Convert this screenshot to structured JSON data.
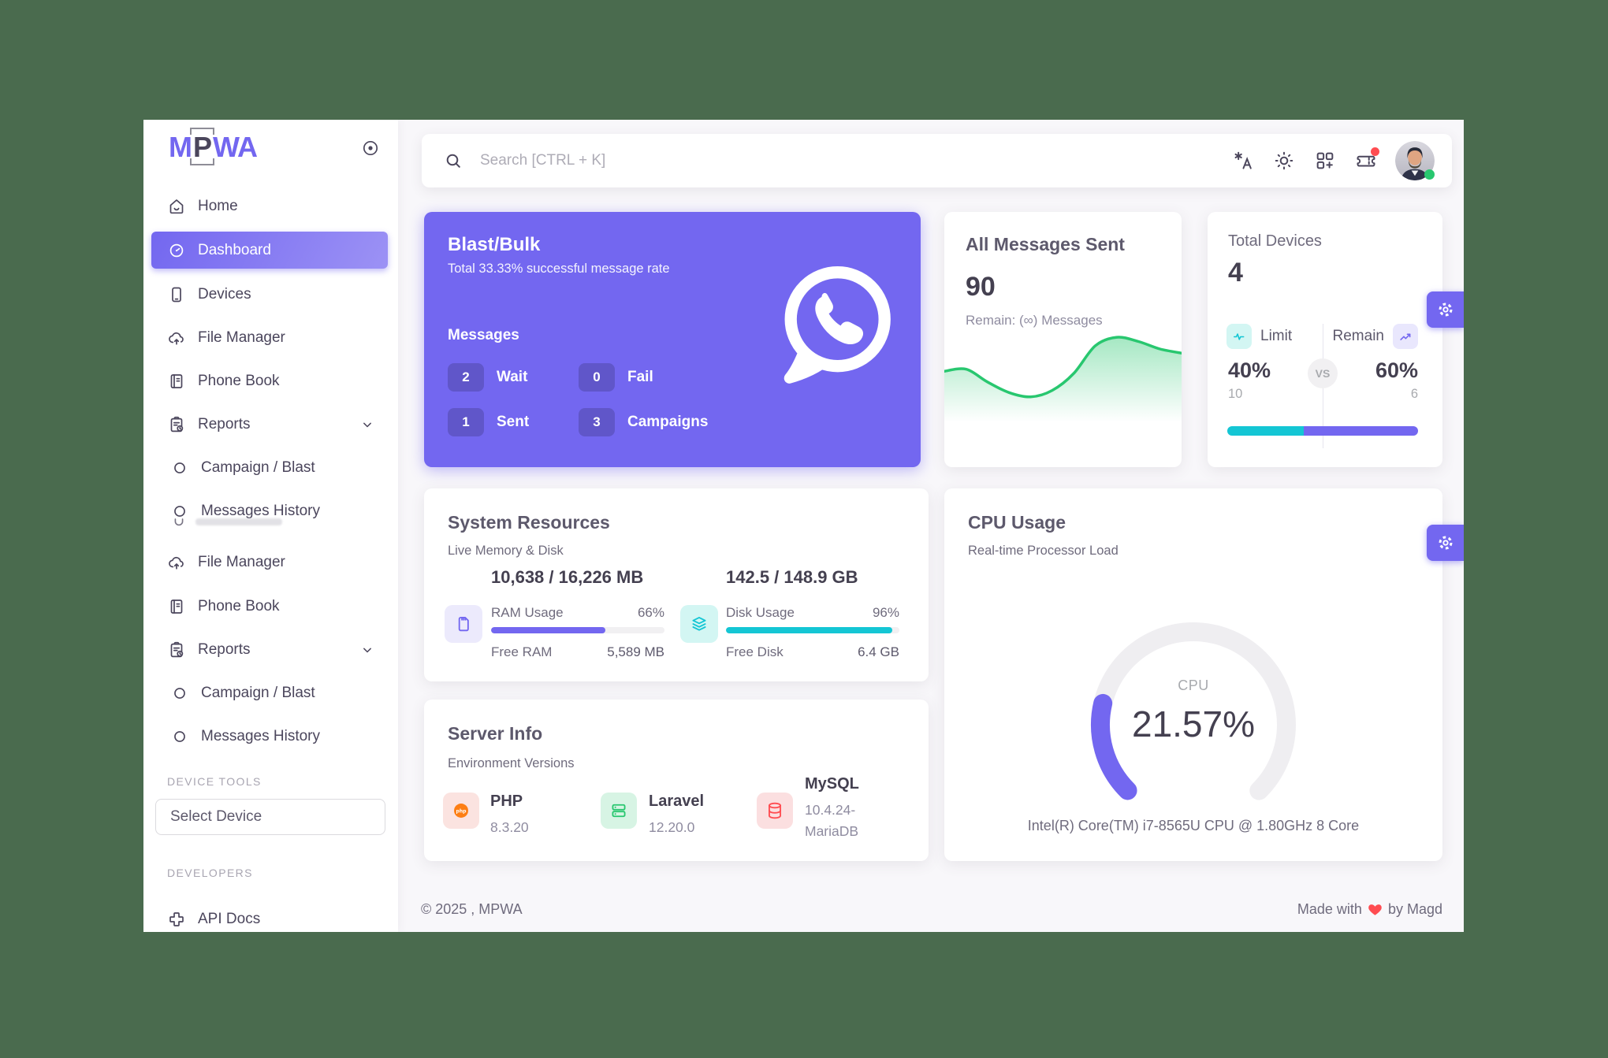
{
  "brand": {
    "logo_m": "M",
    "logo_p": "P",
    "logo_wa": "WA"
  },
  "colors": {
    "primary": "#7367f0",
    "success": "#28c76f",
    "info": "#14c6d4",
    "danger": "#ff4c51",
    "warning": "#fd7e14",
    "page_background": "#4a6b4e"
  },
  "sidebar": {
    "items": [
      {
        "label": "Home",
        "icon": "home-icon"
      },
      {
        "label": "Dashboard",
        "icon": "dashboard-gauge-icon",
        "active": true
      },
      {
        "label": "Devices",
        "icon": "smartphone-icon"
      },
      {
        "label": "File Manager",
        "icon": "cloud-upload-icon"
      },
      {
        "label": "Phone Book",
        "icon": "book-icon"
      },
      {
        "label": "Reports",
        "icon": "clipboard-report-icon",
        "chevron": true
      },
      {
        "label": "Campaign / Blast",
        "icon": "circle-icon",
        "sub": true
      },
      {
        "label": "Messages History",
        "icon": "circle-icon",
        "sub": true
      },
      {
        "label": "File Manager",
        "icon": "cloud-upload-icon"
      },
      {
        "label": "Phone Book",
        "icon": "book-icon"
      },
      {
        "label": "Reports",
        "icon": "clipboard-report-icon",
        "chevron": true
      },
      {
        "label": "Campaign / Blast",
        "icon": "circle-icon",
        "sub": true
      },
      {
        "label": "Messages History",
        "icon": "circle-icon",
        "sub": true
      }
    ],
    "device_tools_label": "DEVICE TOOLS",
    "select_device_placeholder": "Select Device",
    "developers_label": "DEVELOPERS",
    "api_docs_label": "API Docs"
  },
  "header": {
    "search_placeholder": "Search [CTRL + K]",
    "icons": [
      "language-icon",
      "sun-icon",
      "apps-grid-icon",
      "ticket-icon",
      "avatar"
    ]
  },
  "blast": {
    "title": "Blast/Bulk",
    "subtitle": "Total 33.33% successful message rate",
    "messages_label": "Messages",
    "stats": [
      {
        "value": "2",
        "label": "Wait"
      },
      {
        "value": "0",
        "label": "Fail"
      },
      {
        "value": "1",
        "label": "Sent"
      },
      {
        "value": "3",
        "label": "Campaigns"
      }
    ]
  },
  "all_messages": {
    "title": "All Messages Sent",
    "count": "90",
    "remain": "Remain: (∞) Messages"
  },
  "devices": {
    "title": "Total Devices",
    "count": "4",
    "limit_label": "Limit",
    "remain_label": "Remain",
    "vs_label": "VS",
    "limit_pct_label": "40%",
    "remain_pct_label": "60%",
    "limit_value": "10",
    "remain_value": "6",
    "limit_percent": 40
  },
  "system": {
    "title": "System Resources",
    "subtitle": "Live Memory & Disk",
    "ram": {
      "value": "10,638 / 16,226 MB",
      "usage_label": "RAM Usage",
      "usage_pct": "66%",
      "percent": 66,
      "free_label": "Free RAM",
      "free_value": "5,589 MB"
    },
    "disk": {
      "value": "142.5 / 148.9 GB",
      "usage_label": "Disk Usage",
      "usage_pct": "96%",
      "percent": 96,
      "free_label": "Free Disk",
      "free_value": "6.4 GB"
    }
  },
  "server": {
    "title": "Server Info",
    "subtitle": "Environment Versions",
    "items": [
      {
        "name": "PHP",
        "version": "8.3.20",
        "icon": "php-icon"
      },
      {
        "name": "Laravel",
        "version": "12.20.0",
        "icon": "server-stack-icon"
      },
      {
        "name": "MySQL",
        "version": "10.4.24-MariaDB",
        "icon": "database-icon"
      }
    ]
  },
  "cpu": {
    "title": "CPU Usage",
    "subtitle": "Real-time Processor Load",
    "gauge_label": "CPU",
    "value_label": "21.57%",
    "percent": 21.57,
    "processor": "Intel(R) Core(TM) i7-8565U CPU @ 1.80GHz 8 Core"
  },
  "footer": {
    "copyright": "© 2025 , MPWA",
    "made_with": "Made with",
    "by": "by Magd"
  },
  "chart_data": [
    {
      "type": "area",
      "title": "All Messages Sent sparkline",
      "x": [
        0,
        1,
        2,
        3,
        4,
        5,
        6,
        7,
        8,
        9,
        10,
        11
      ],
      "series": [
        {
          "name": "messages",
          "values": [
            62,
            64,
            52,
            42,
            38,
            44,
            60,
            86,
            94,
            90,
            83,
            79
          ]
        }
      ],
      "ylim": [
        0,
        100
      ],
      "grid": false,
      "legend": "none",
      "note": "decorative sparkline, no axes shown; values estimated from curve shape"
    },
    {
      "type": "gauge",
      "title": "CPU",
      "value": 21.57,
      "max": 100,
      "unit": "%",
      "arc_degrees": 270
    },
    {
      "type": "bar",
      "title": "Device Limit vs Remain",
      "categories": [
        "Limit",
        "Remain"
      ],
      "values": [
        40,
        60
      ]
    }
  ]
}
